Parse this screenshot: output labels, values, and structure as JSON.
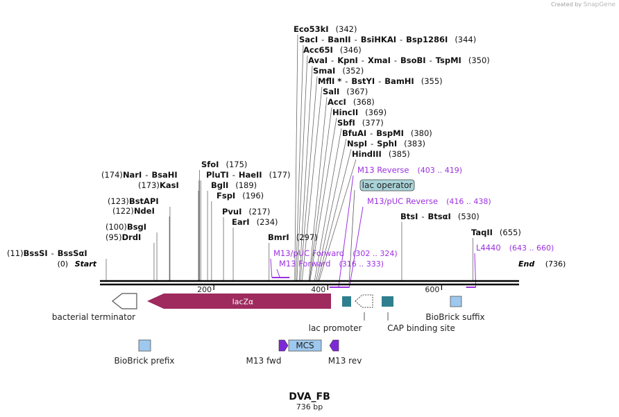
{
  "watermark": {
    "prefix": "Created by",
    "brand": "SnapGene"
  },
  "sequence": {
    "name": "DVA_FB",
    "length_label": "736 bp",
    "length": 736
  },
  "ruler": {
    "ticks": [
      "200",
      "400",
      "600"
    ]
  },
  "ends": {
    "start_name": "Start",
    "start_pos": "(0)",
    "end_name": "End",
    "end_pos": "(736)"
  },
  "enzymes": [
    {
      "names": [
        "BssSI",
        "BssSαI"
      ],
      "pos": "(11)",
      "bp": 11
    },
    {
      "names": [
        "DrdI"
      ],
      "pos": "(95)",
      "bp": 95
    },
    {
      "names": [
        "BsgI"
      ],
      "pos": "(100)",
      "bp": 100
    },
    {
      "names": [
        "NdeI"
      ],
      "pos": "(122)",
      "bp": 122
    },
    {
      "names": [
        "BstAPI"
      ],
      "pos": "(123)",
      "bp": 123
    },
    {
      "names": [
        "KasI"
      ],
      "pos": "(173)",
      "bp": 173
    },
    {
      "names": [
        "NarI",
        "BsaHI"
      ],
      "pos": "(174)",
      "bp": 174
    },
    {
      "names": [
        "SfoI"
      ],
      "pos": "(175)",
      "bp": 175
    },
    {
      "names": [
        "PluTI",
        "HaeII"
      ],
      "pos": "(177)",
      "bp": 177
    },
    {
      "names": [
        "BglI"
      ],
      "pos": "(189)",
      "bp": 189
    },
    {
      "names": [
        "FspI"
      ],
      "pos": "(196)",
      "bp": 196
    },
    {
      "names": [
        "PvuI"
      ],
      "pos": "(217)",
      "bp": 217
    },
    {
      "names": [
        "EarI"
      ],
      "pos": "(234)",
      "bp": 234
    },
    {
      "names": [
        "BmrI"
      ],
      "pos": "(297)",
      "bp": 297
    },
    {
      "names": [
        "Eco53kI"
      ],
      "pos": "(342)",
      "bp": 342
    },
    {
      "names": [
        "SacI",
        "BanII",
        "BsiHKAI",
        "Bsp1286I"
      ],
      "pos": "(344)",
      "bp": 344
    },
    {
      "names": [
        "Acc65I"
      ],
      "pos": "(346)",
      "bp": 346
    },
    {
      "names": [
        "AvaI",
        "KpnI",
        "XmaI",
        "BsoBI",
        "TspMI"
      ],
      "pos": "(350)",
      "bp": 350
    },
    {
      "names": [
        "SmaI"
      ],
      "pos": "(352)",
      "bp": 352
    },
    {
      "names": [
        "MflI *",
        "BstYI",
        "BamHI"
      ],
      "pos": "(355)",
      "bp": 355
    },
    {
      "names": [
        "SalI"
      ],
      "pos": "(367)",
      "bp": 367
    },
    {
      "names": [
        "AccI"
      ],
      "pos": "(368)",
      "bp": 368
    },
    {
      "names": [
        "HincII"
      ],
      "pos": "(369)",
      "bp": 369
    },
    {
      "names": [
        "SbfI"
      ],
      "pos": "(377)",
      "bp": 377
    },
    {
      "names": [
        "BfuAI",
        "BspMI"
      ],
      "pos": "(380)",
      "bp": 380
    },
    {
      "names": [
        "NspI",
        "SphI"
      ],
      "pos": "(383)",
      "bp": 383
    },
    {
      "names": [
        "HindIII"
      ],
      "pos": "(385)",
      "bp": 385
    },
    {
      "names": [
        "BtsI",
        "BtsαI"
      ],
      "pos": "(530)",
      "bp": 530
    },
    {
      "names": [
        "TaqII"
      ],
      "pos": "(655)",
      "bp": 655
    }
  ],
  "primers": [
    {
      "name": "M13 Reverse",
      "range": "(403 .. 419)",
      "start": 403,
      "end": 419,
      "strand": "-"
    },
    {
      "name": "M13/pUC Reverse",
      "range": "(416 .. 438)",
      "start": 416,
      "end": 438,
      "strand": "-"
    },
    {
      "name": "M13/pUC Forward",
      "range": "(302 .. 324)",
      "start": 302,
      "end": 324,
      "strand": "+"
    },
    {
      "name": "M13 Forward",
      "range": "(316 .. 333)",
      "start": 316,
      "end": 333,
      "strand": "+"
    },
    {
      "name": "L4440",
      "range": "(643 .. 660)",
      "start": 643,
      "end": 660,
      "strand": "-"
    }
  ],
  "operator": {
    "name": "lac operator"
  },
  "features": {
    "lacZa": "lacZα",
    "bacterial_terminator": "bacterial terminator",
    "lac_promoter": "lac promoter",
    "cap_site": "CAP binding site",
    "biobrick_suffix": "BioBrick suffix",
    "biobrick_prefix": "BioBrick prefix",
    "mcs": "MCS",
    "m13_fwd": "M13 fwd",
    "m13_rev": "M13 rev"
  },
  "colors": {
    "lacZa": "#9e2a5e",
    "teal": "#2f7f8e",
    "biobrick": "#9ec8ee",
    "primer": "#9b30e0",
    "primer_box": "#7d2ad6",
    "operator_fill": "#a9d3d8"
  }
}
